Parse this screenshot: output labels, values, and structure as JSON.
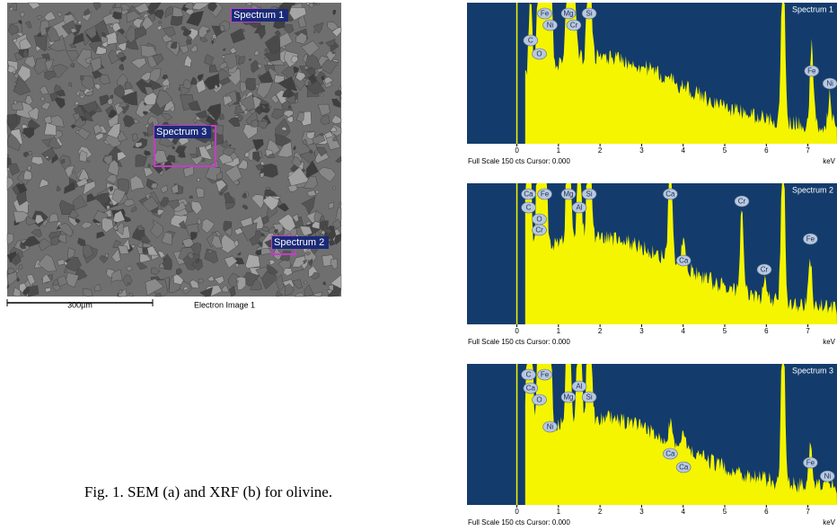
{
  "sem": {
    "labels": [
      "Spectrum 1",
      "Spectrum 3",
      "Spectrum 2"
    ],
    "scale_bar": "300µm",
    "image_label": "Electron Image 1"
  },
  "spectra": [
    {
      "title": "Spectrum 1",
      "xlim": [
        -1.2,
        7.7
      ],
      "xticks": [
        0,
        1,
        2,
        3,
        4,
        5,
        6,
        7
      ],
      "x_unit": "keV",
      "footer": "Full Scale 150 cts Cursor: 0.000",
      "peaks": [
        {
          "label": "C",
          "x": 0.33
        },
        {
          "label": "O",
          "x": 0.54
        },
        {
          "label": "Fe",
          "x": 0.67
        },
        {
          "label": "Ni",
          "x": 0.8
        },
        {
          "label": "Mg",
          "x": 1.24
        },
        {
          "label": "Cr",
          "x": 1.37
        },
        {
          "label": "Si",
          "x": 1.74
        },
        {
          "label": "Fe",
          "x": 7.09
        },
        {
          "label": "Ni",
          "x": 7.53
        }
      ]
    },
    {
      "title": "Spectrum 2",
      "xlim": [
        -1.2,
        7.7
      ],
      "xticks": [
        0,
        1,
        2,
        3,
        4,
        5,
        6,
        7
      ],
      "x_unit": "keV",
      "footer": "Full Scale 150 cts Cursor: 0.000",
      "peaks": [
        {
          "label": "Ca",
          "x": 0.28
        },
        {
          "label": "C",
          "x": 0.28
        },
        {
          "label": "O",
          "x": 0.54
        },
        {
          "label": "Cr",
          "x": 0.54
        },
        {
          "label": "Fe",
          "x": 0.67
        },
        {
          "label": "Mg",
          "x": 1.24
        },
        {
          "label": "Al",
          "x": 1.5
        },
        {
          "label": "Si",
          "x": 1.74
        },
        {
          "label": "Ca",
          "x": 3.69
        },
        {
          "label": "Ca",
          "x": 4.01
        },
        {
          "label": "Cr",
          "x": 5.41
        },
        {
          "label": "Cr",
          "x": 5.95
        },
        {
          "label": "Fe",
          "x": 7.06
        }
      ]
    },
    {
      "title": "Spectrum 3",
      "xlim": [
        -1.2,
        7.7
      ],
      "xticks": [
        0,
        1,
        2,
        3,
        4,
        5,
        6,
        7
      ],
      "x_unit": "keV",
      "footer": "Full Scale 150 cts Cursor: 0.000",
      "peaks": [
        {
          "label": "C",
          "x": 0.28
        },
        {
          "label": "Ca",
          "x": 0.33
        },
        {
          "label": "O",
          "x": 0.54
        },
        {
          "label": "Fe",
          "x": 0.67
        },
        {
          "label": "Ni",
          "x": 0.8
        },
        {
          "label": "Mg",
          "x": 1.24
        },
        {
          "label": "Al",
          "x": 1.5
        },
        {
          "label": "Si",
          "x": 1.74
        },
        {
          "label": "Ca",
          "x": 3.69
        },
        {
          "label": "Ca",
          "x": 4.01
        },
        {
          "label": "Fe",
          "x": 7.06
        },
        {
          "label": "Ni",
          "x": 7.47
        }
      ]
    }
  ],
  "caption": "Fig. 1. SEM (a) and XRF (b) for olivine."
}
